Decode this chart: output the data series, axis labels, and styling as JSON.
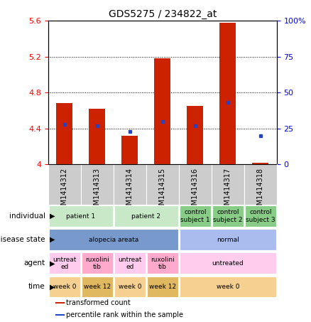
{
  "title": "GDS5275 / 234822_at",
  "samples": [
    "GSM1414312",
    "GSM1414313",
    "GSM1414314",
    "GSM1414315",
    "GSM1414316",
    "GSM1414317",
    "GSM1414318"
  ],
  "bar_heights": [
    4.68,
    4.62,
    4.32,
    5.18,
    4.65,
    5.58,
    4.02
  ],
  "blue_dot_pct": [
    28,
    27,
    23,
    30,
    27,
    43,
    20
  ],
  "bar_color": "#cc2200",
  "dot_color": "#2244cc",
  "ylim_left": [
    4.0,
    5.6
  ],
  "ylim_right": [
    0,
    100
  ],
  "yticks_left": [
    4.0,
    4.4,
    4.8,
    5.2,
    5.6
  ],
  "yticks_right": [
    0,
    25,
    50,
    75,
    100
  ],
  "ytick_labels_left": [
    "4",
    "4.4",
    "4.8",
    "5.2",
    "5.6"
  ],
  "ytick_labels_right": [
    "0",
    "25",
    "50",
    "75",
    "100%"
  ],
  "hlines": [
    4.4,
    4.8,
    5.2
  ],
  "annotation_rows": [
    {
      "label": "individual",
      "cells": [
        {
          "text": "patient 1",
          "span": 2,
          "color": "#c8e8c8"
        },
        {
          "text": "patient 2",
          "span": 2,
          "color": "#c8e8c8"
        },
        {
          "text": "control\nsubject 1",
          "span": 1,
          "color": "#88cc88"
        },
        {
          "text": "control\nsubject 2",
          "span": 1,
          "color": "#88cc88"
        },
        {
          "text": "control\nsubject 3",
          "span": 1,
          "color": "#88cc88"
        }
      ]
    },
    {
      "label": "disease state",
      "cells": [
        {
          "text": "alopecia areata",
          "span": 4,
          "color": "#7799cc"
        },
        {
          "text": "normal",
          "span": 3,
          "color": "#aabbee"
        }
      ]
    },
    {
      "label": "agent",
      "cells": [
        {
          "text": "untreat\ned",
          "span": 1,
          "color": "#ffccee"
        },
        {
          "text": "ruxolini\ntib",
          "span": 1,
          "color": "#ffaacc"
        },
        {
          "text": "untreat\ned",
          "span": 1,
          "color": "#ffccee"
        },
        {
          "text": "ruxolini\ntib",
          "span": 1,
          "color": "#ffaacc"
        },
        {
          "text": "untreated",
          "span": 3,
          "color": "#ffccee"
        }
      ]
    },
    {
      "label": "time",
      "cells": [
        {
          "text": "week 0",
          "span": 1,
          "color": "#f5d090"
        },
        {
          "text": "week 12",
          "span": 1,
          "color": "#e0b860"
        },
        {
          "text": "week 0",
          "span": 1,
          "color": "#f5d090"
        },
        {
          "text": "week 12",
          "span": 1,
          "color": "#e0b860"
        },
        {
          "text": "week 0",
          "span": 3,
          "color": "#f5d090"
        }
      ]
    }
  ],
  "legend": [
    {
      "color": "#cc2200",
      "label": "transformed count"
    },
    {
      "color": "#2244cc",
      "label": "percentile rank within the sample"
    }
  ],
  "xtick_bg": "#cccccc",
  "xtick_fontsize": 7,
  "bar_width": 0.5,
  "title_fontsize": 10
}
